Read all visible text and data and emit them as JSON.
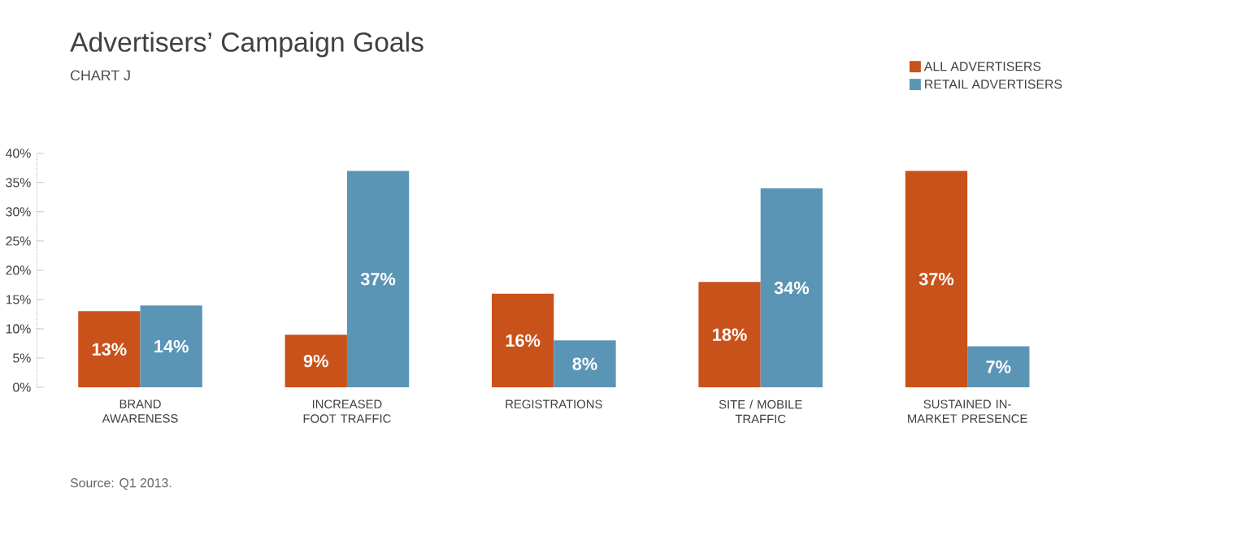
{
  "chart_data": {
    "type": "bar",
    "title": "Advertisers’ Campaign Goals",
    "subtitle": "CHART J",
    "categories": [
      "BRAND AWARENESS",
      "INCREASED FOOT TRAFFIC",
      "REGISTRATIONS",
      "SITE / MOBILE TRAFFIC",
      "SUSTAINED IN-MARKET PRESENCE"
    ],
    "series": [
      {
        "name": "ALL ADVERTISERS",
        "color": "#c9521b",
        "values": [
          13,
          9,
          16,
          18,
          37
        ],
        "value_labels": [
          "13%",
          "9%",
          "16%",
          "18%",
          "37%"
        ]
      },
      {
        "name": "RETAIL ADVERTISERS",
        "color": "#5b95b6",
        "values": [
          14,
          37,
          8,
          34,
          7
        ],
        "value_labels": [
          "14%",
          "37%",
          "8%",
          "34%",
          "7%"
        ]
      }
    ],
    "ylim": [
      0,
      40
    ],
    "yticks": [
      {
        "value": 0,
        "label": "0%"
      },
      {
        "value": 5,
        "label": "5%"
      },
      {
        "value": 10,
        "label": "10%"
      },
      {
        "value": 15,
        "label": "15%"
      },
      {
        "value": 20,
        "label": "20%"
      },
      {
        "value": 25,
        "label": "25%"
      },
      {
        "value": 30,
        "label": "30%"
      },
      {
        "value": 35,
        "label": "35%"
      },
      {
        "value": 40,
        "label": "40%"
      }
    ],
    "legend": "top right",
    "grid": false,
    "annotations": [
      "Source: Q1 2013."
    ]
  }
}
